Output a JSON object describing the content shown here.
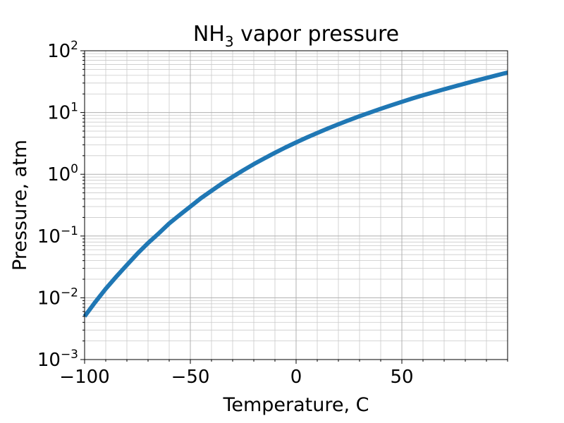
{
  "chart_data": {
    "type": "line",
    "title": {
      "prefix": "NH",
      "subscript": "3",
      "suffix": " vapor pressure"
    },
    "xlabel": "Temperature, C",
    "ylabel": "Pressure, atm",
    "xlim": [
      -100,
      100
    ],
    "ylim": [
      0.001,
      100
    ],
    "yscale": "log",
    "grid": "major and minor",
    "legend": "none",
    "line_color": "#1f77b4",
    "x_ticks": [
      {
        "value": -100,
        "label": "−100"
      },
      {
        "value": -50,
        "label": "−50"
      },
      {
        "value": 0,
        "label": "0"
      },
      {
        "value": 50,
        "label": "50"
      }
    ],
    "y_ticks": [
      {
        "value": 0.001,
        "base": "10",
        "exp": "−3"
      },
      {
        "value": 0.01,
        "base": "10",
        "exp": "−2"
      },
      {
        "value": 0.1,
        "base": "10",
        "exp": "−1"
      },
      {
        "value": 1,
        "base": "10",
        "exp": "0"
      },
      {
        "value": 10,
        "base": "10",
        "exp": "1"
      },
      {
        "value": 100,
        "base": "10",
        "exp": "2"
      }
    ],
    "series": [
      {
        "x": [
          -100,
          -95,
          -90,
          -85,
          -80,
          -75,
          -70,
          -65,
          -60,
          -55,
          -50,
          -45,
          -40,
          -35,
          -30,
          -25,
          -20,
          -15,
          -10,
          -5,
          0,
          5,
          10,
          15,
          20,
          25,
          30,
          35,
          40,
          45,
          50,
          55,
          60,
          65,
          70,
          75,
          80,
          85,
          90,
          95,
          100
        ],
        "y": [
          0.005,
          0.0085,
          0.014,
          0.022,
          0.034,
          0.052,
          0.077,
          0.11,
          0.16,
          0.22,
          0.3,
          0.41,
          0.54,
          0.71,
          0.91,
          1.16,
          1.46,
          1.81,
          2.23,
          2.72,
          3.28,
          3.93,
          4.67,
          5.51,
          6.46,
          7.52,
          8.71,
          10.0,
          11.5,
          13.1,
          14.9,
          16.9,
          19.0,
          21.3,
          23.8,
          26.5,
          29.5,
          32.8,
          36.3,
          40.2,
          44.4
        ]
      }
    ]
  }
}
